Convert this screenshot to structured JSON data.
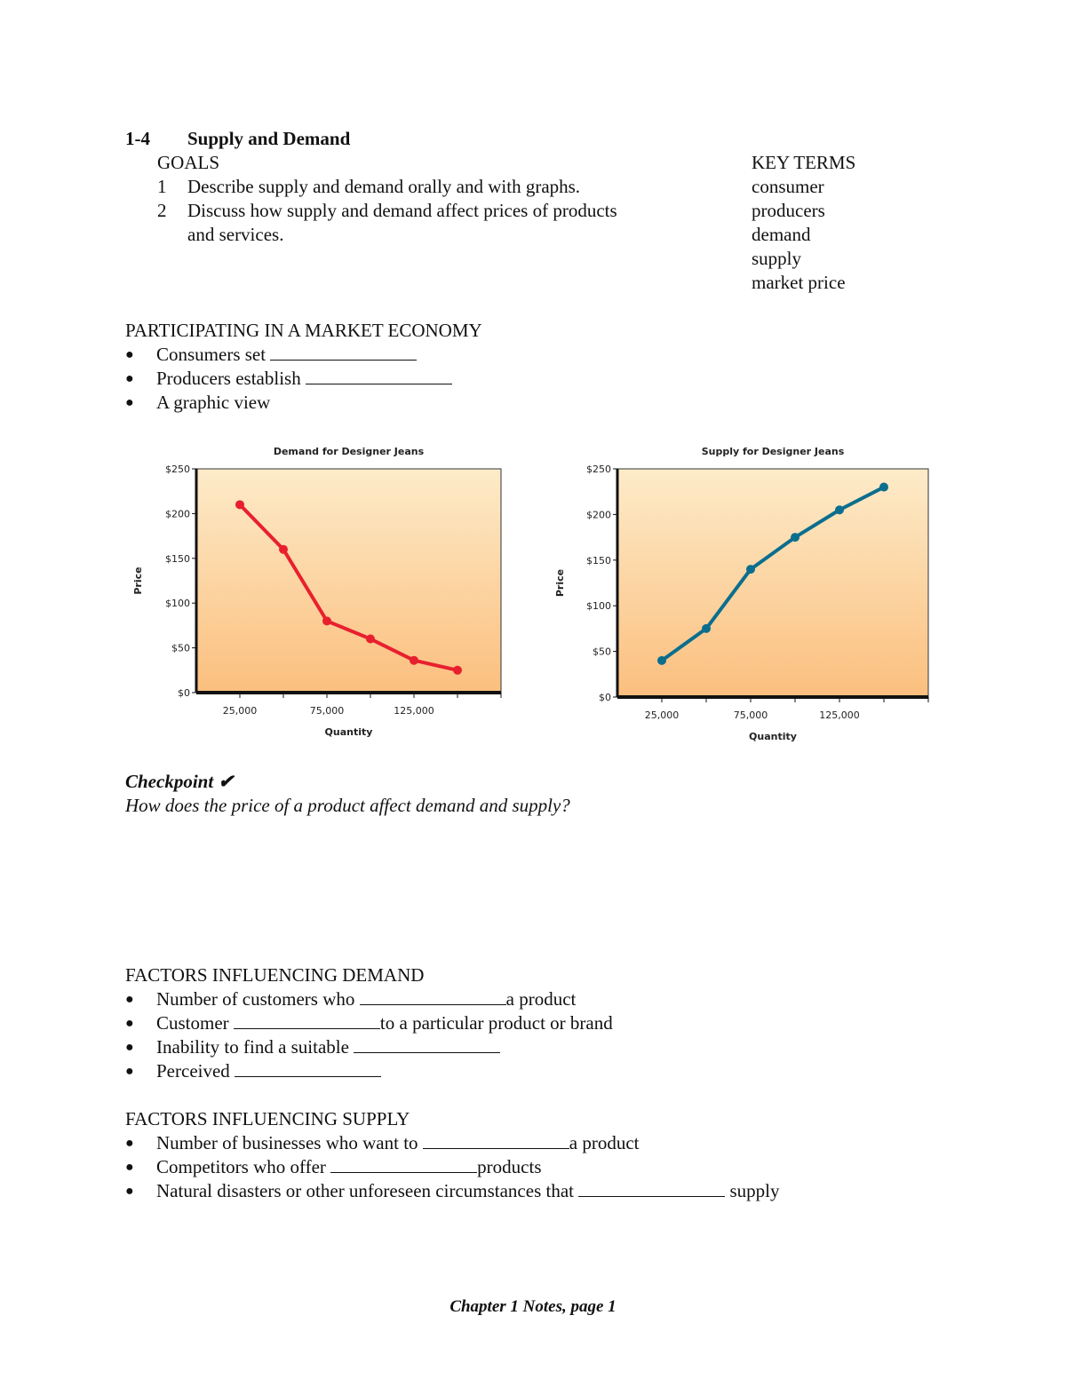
{
  "section": {
    "number": "1-4",
    "title": "Supply and Demand"
  },
  "goals": {
    "heading": "GOALS",
    "items": [
      {
        "num": "1",
        "text": "Describe supply and demand orally and with graphs."
      },
      {
        "num": "2",
        "text": "Discuss how supply and demand affect prices of products",
        "cont": "and services."
      }
    ]
  },
  "key_terms": {
    "heading": "KEY TERMS",
    "items": [
      "consumer",
      "producers",
      "demand",
      "supply",
      "market price"
    ]
  },
  "participating": {
    "heading": "PARTICIPATING IN A MARKET ECONOMY",
    "items": [
      {
        "before": "Consumers set",
        "after": ""
      },
      {
        "before": "Producers establish",
        "after": ""
      },
      {
        "before": "A graphic view"
      }
    ]
  },
  "chart_data": [
    {
      "type": "line",
      "title": "Demand for Designer Jeans",
      "xlabel": "Quantity",
      "ylabel": "Price",
      "x": [
        25000,
        50000,
        75000,
        100000,
        125000,
        150000
      ],
      "values": [
        210,
        160,
        80,
        60,
        36,
        25
      ],
      "xlim": [
        0,
        175000
      ],
      "ylim": [
        0,
        250
      ],
      "xtick_labels": [
        "25,000",
        "75,000",
        "125,000"
      ],
      "ytick_labels": [
        "$0",
        "$50",
        "$100",
        "$150",
        "$200",
        "$250"
      ],
      "grid": false,
      "line_color": "#e8202e",
      "background_gradient": [
        "#fdebc9",
        "#fbbf7e"
      ]
    },
    {
      "type": "line",
      "title": "Supply for Designer Jeans",
      "xlabel": "Quantity",
      "ylabel": "Price",
      "x": [
        25000,
        50000,
        75000,
        100000,
        125000,
        150000
      ],
      "values": [
        40,
        75,
        140,
        175,
        205,
        230
      ],
      "xlim": [
        0,
        175000
      ],
      "ylim": [
        0,
        250
      ],
      "xtick_labels": [
        "25,000",
        "75,000",
        "125,000"
      ],
      "ytick_labels": [
        "$0",
        "$50",
        "$100",
        "$150",
        "$200",
        "$250"
      ],
      "grid": false,
      "line_color": "#0b6e8e",
      "background_gradient": [
        "#fdebc9",
        "#fbbf7e"
      ]
    }
  ],
  "checkpoint": {
    "label": "Checkpoint",
    "check": "✔",
    "question": "How does the price of a product affect demand and supply?"
  },
  "demand_factors": {
    "heading": "FACTORS INFLUENCING DEMAND",
    "items": [
      {
        "before": "Number of customers who",
        "after": "a product"
      },
      {
        "before": "Customer",
        "after": "to a particular product or brand"
      },
      {
        "before": "Inability to find a suitable",
        "after": ""
      },
      {
        "before": "Perceived",
        "after": ""
      }
    ]
  },
  "supply_factors": {
    "heading": "FACTORS INFLUENCING SUPPLY",
    "items": [
      {
        "before": "Number of businesses who want to",
        "after": "a product"
      },
      {
        "before": "Competitors who offer",
        "after": "products"
      },
      {
        "before": "Natural disasters or other unforeseen circumstances that",
        "after": " supply"
      }
    ]
  },
  "footer": "Chapter 1 Notes, page 1"
}
